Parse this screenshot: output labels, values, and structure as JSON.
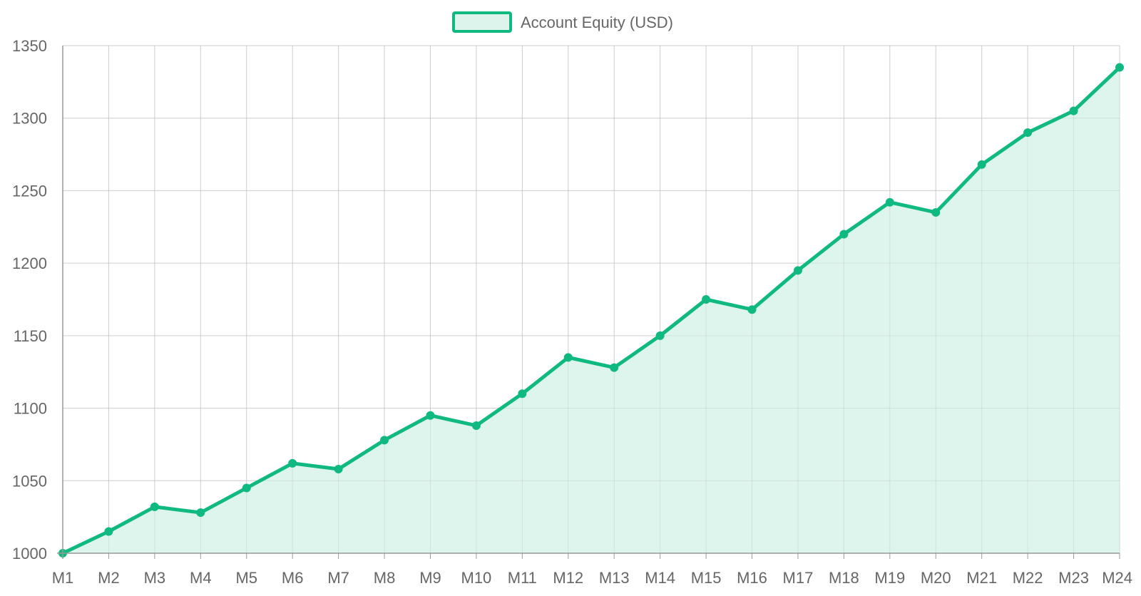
{
  "chart_data": {
    "type": "area",
    "x": [
      "M1",
      "M2",
      "M3",
      "M4",
      "M5",
      "M6",
      "M7",
      "M8",
      "M9",
      "M10",
      "M11",
      "M12",
      "M13",
      "M14",
      "M15",
      "M16",
      "M17",
      "M18",
      "M19",
      "M20",
      "M21",
      "M22",
      "M23",
      "M24"
    ],
    "series": [
      {
        "name": "Account Equity (USD)",
        "values": [
          1000,
          1015,
          1032,
          1028,
          1045,
          1062,
          1058,
          1078,
          1095,
          1088,
          1110,
          1135,
          1128,
          1150,
          1175,
          1168,
          1195,
          1220,
          1242,
          1235,
          1268,
          1290,
          1305,
          1335
        ]
      }
    ],
    "y_ticks": [
      "1000",
      "1050",
      "1100",
      "1150",
      "1200",
      "1250",
      "1300",
      "1350"
    ],
    "ylim": [
      1000,
      1350
    ],
    "grid": true,
    "legend_position": "top-center",
    "colors": {
      "line": "#10b981",
      "fill": "#dcf4ec",
      "grid": "#dddddd",
      "axis": "#999999",
      "text": "#666666"
    }
  }
}
